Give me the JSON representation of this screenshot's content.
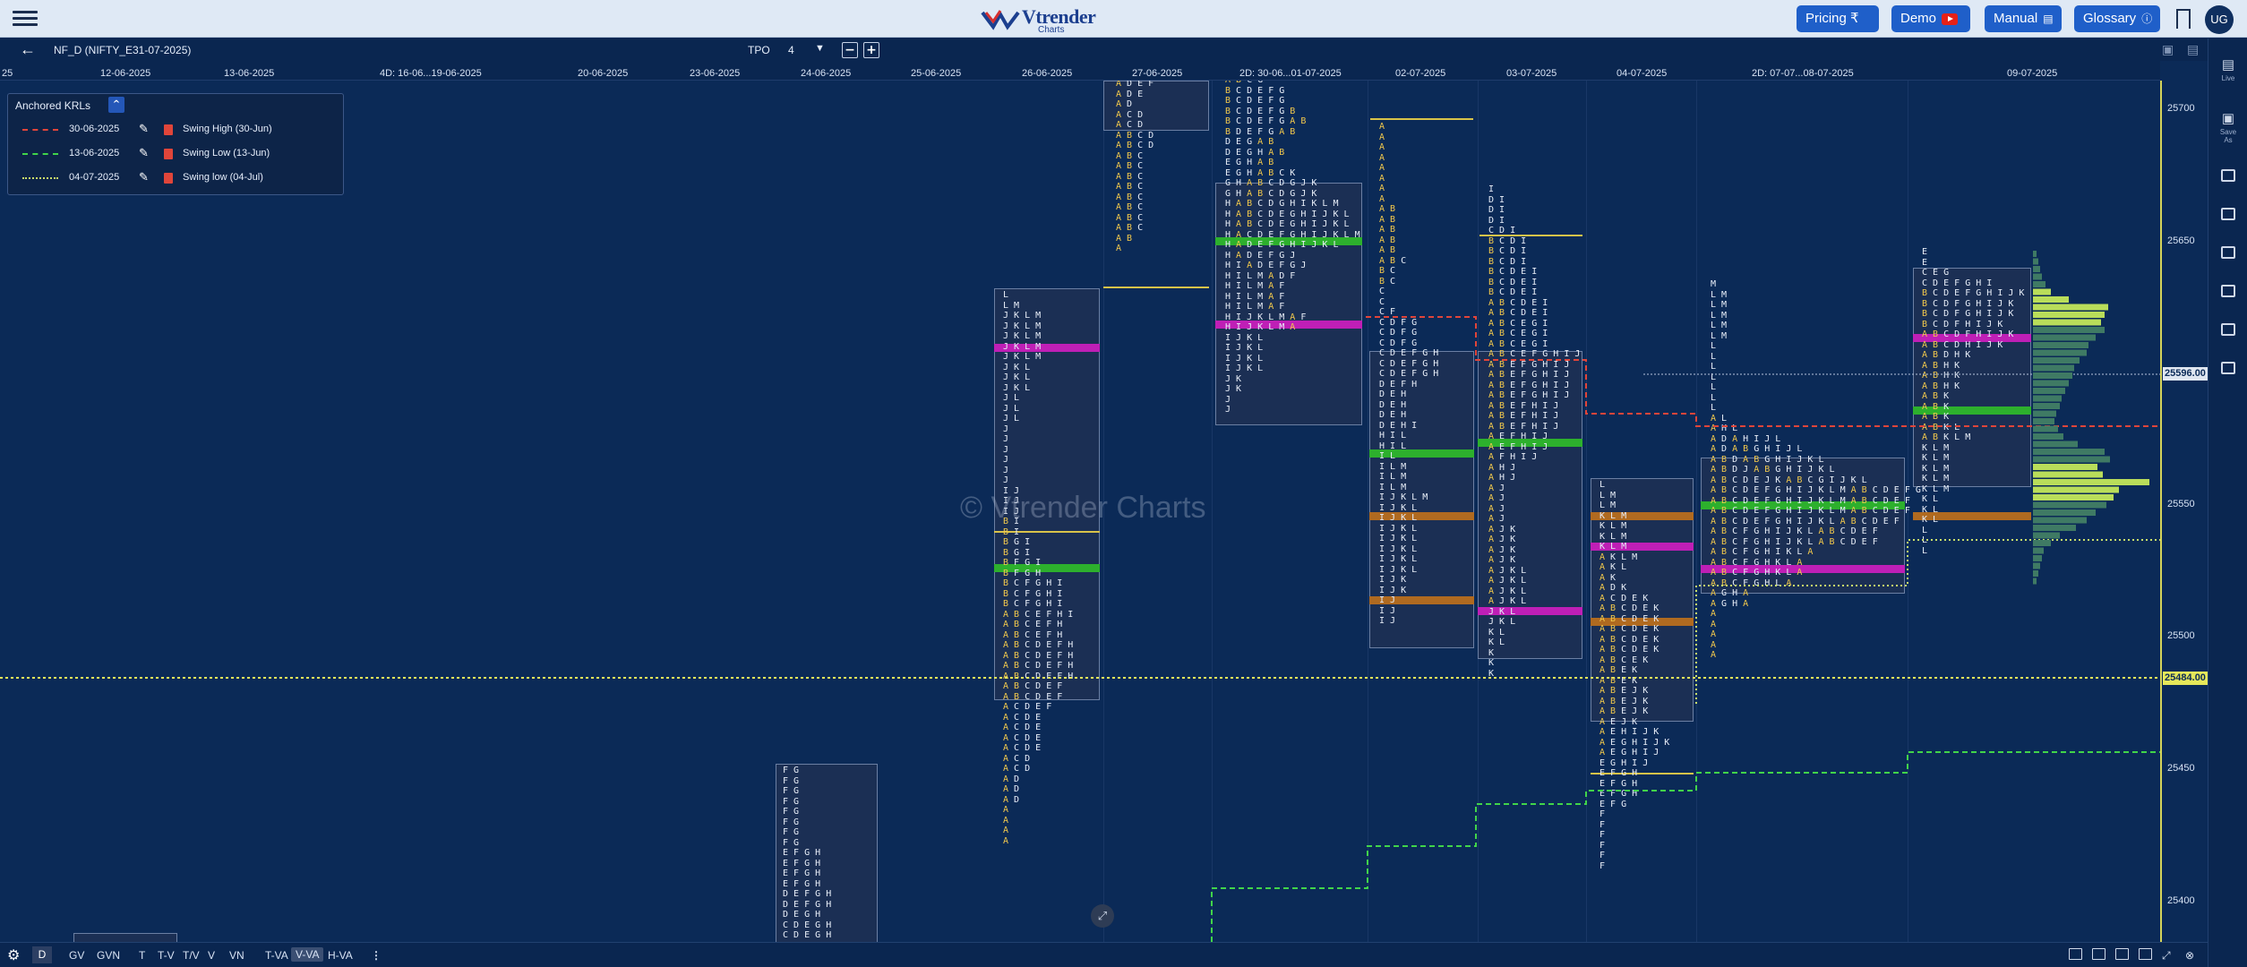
{
  "header": {
    "logo_name": "Vtrender",
    "logo_sub": "Charts",
    "nav": [
      {
        "label": "Pricing ₹",
        "icon": ""
      },
      {
        "label": "Demo",
        "icon": "youtube-icon"
      },
      {
        "label": "Manual",
        "icon": "book-icon"
      },
      {
        "label": "Glossary",
        "icon": "info-icon"
      }
    ],
    "avatar": "UG"
  },
  "toolbar": {
    "symbol": "NF_D (NIFTY_E31-07-2025)",
    "tpo_label": "TPO",
    "tpo_value": "4",
    "minus": "−",
    "plus": "+"
  },
  "dates": [
    "25",
    "12-06-2025",
    "13-06-2025",
    "4D: 16-06...19-06-2025",
    "20-06-2025",
    "23-06-2025",
    "24-06-2025",
    "25-06-2025",
    "26-06-2025",
    "27-06-2025",
    "2D: 30-06...01-07-2025",
    "02-07-2025",
    "03-07-2025",
    "04-07-2025",
    "2D: 07-07...08-07-2025",
    "09-07-2025"
  ],
  "price_ticks": [
    "25700",
    "25650",
    "25600",
    "25550",
    "25500",
    "25450",
    "25400"
  ],
  "price_tags": {
    "current": "25596.00",
    "line": "25484.00"
  },
  "watermark": "© Vtrender Charts",
  "legend": {
    "title": "Anchored KRLs",
    "collapse": "^",
    "rows": [
      {
        "date": "30-06-2025",
        "name": "Swing High (30-Jun)",
        "color": "#e0453a",
        "style": "dashed"
      },
      {
        "date": "13-06-2025",
        "name": "Swing Low (13-Jun)",
        "color": "#41d44a",
        "style": "dashed"
      },
      {
        "date": "04-07-2025",
        "name": "Swing low (04-Jul)",
        "color": "#c9e06b",
        "style": "dotted"
      }
    ]
  },
  "rail": {
    "live": "Live",
    "save": "Save As"
  },
  "bottom": {
    "d": "D",
    "items": [
      "GV",
      "GVN",
      "T",
      "T-V",
      "T/V",
      "V",
      "VN",
      "T-VA",
      "V-VA",
      "H-VA"
    ],
    "active": "V-VA"
  },
  "tpo_letters": {
    "p1": [
      "F G",
      "F G",
      "F G",
      "F G",
      "F G",
      "F G",
      "F G",
      "F G",
      "E F G H",
      "E F G H",
      "E F G H",
      "E F G H",
      "D E F G H",
      "D E F G H",
      "D E G H",
      "C D E G H",
      "C D E G H"
    ],
    "p2": [
      "L",
      "L M",
      "J K L M",
      "J K L M",
      "J K L M",
      "J K L M",
      "J K L M",
      "J K L",
      "J K L",
      "J K L",
      "J L",
      "J L",
      "J L",
      "J",
      "J",
      "J",
      "J",
      "J",
      "J",
      "I J",
      "I J",
      "I J",
      "B I",
      "B I",
      "B G I",
      "B G I",
      "B F G I",
      "B F G H",
      "B C F G H I",
      "B C F G H I",
      "B C F G H I",
      "A B C E F H I",
      "A B C E F H",
      "A B C E F H",
      "A B C D E F H",
      "A B C D E F H",
      "A B C D E F H",
      "A B C D E F H",
      "A B C D E F",
      "A B C D E F",
      "A C D E F",
      "A C D E",
      "A C D E",
      "A C D E",
      "A C D E",
      "A C D",
      "A C D",
      "A D",
      "A D",
      "A D",
      "A",
      "A",
      "A",
      "A"
    ],
    "p3": [
      "A D E F",
      "A D E",
      "A D",
      "A C D",
      "A C D",
      "A B C D",
      "A B C D",
      "A B C",
      "A B C",
      "A B C",
      "A B C",
      "A B C",
      "A B C",
      "A B C",
      "A B C",
      "A B",
      "A"
    ],
    "p4": [
      "A B C G",
      "B C D E F G",
      "B C D E F G",
      "B C D E F G B",
      "B C D E F G A B",
      "B D E F G A B",
      "D E G A B",
      "D E G H A B",
      "E G H A B",
      "E G H A B C K",
      "G H A B C D G J K",
      "G H A B C D G J K",
      "H A B C D G H I K L M",
      "H A B C D E G H I J K L",
      "H A B C D E G H I J K L",
      "H A C D E F G H I J K L M",
      "H A D E F G H I J K L",
      "H A D E F G J",
      "H I A D E F G J",
      "H I L M A D F",
      "H I L M A F",
      "H I L M A F",
      "H I L M A F",
      "H I J K L M A F",
      "H I J K L M A",
      "I J K L",
      "I J K L",
      "I J K L",
      "I J K L",
      "J K",
      "J K",
      "J",
      "J"
    ],
    "p5": [
      "A",
      "A",
      "A",
      "A",
      "A",
      "A",
      "A",
      "A",
      "A B",
      "A B",
      "A B",
      "A B",
      "A B",
      "A B C",
      "B C",
      "B C",
      "C",
      "C",
      "C F",
      "C D F G",
      "C D F G",
      "C D F G",
      "C D E F G H",
      "C D E F G H",
      "C D E F G H",
      "D E F H",
      "D E H",
      "D E H",
      "D E H",
      "D E H I",
      "H I L",
      "H I L",
      "I L",
      "I L M",
      "I L M",
      "I L M",
      "I J K L M",
      "I J K L",
      "I J K L",
      "I J K L",
      "I J K L",
      "I J K L",
      "I J K L",
      "I J K L",
      "I J K",
      "I J K",
      "I J",
      "I J",
      "I J"
    ],
    "p6": [
      "I",
      "D I",
      "D I",
      "D I",
      "C D I",
      "B C D I",
      "B C D I",
      "B C D I",
      "B C D E I",
      "B C D E I",
      "B C D E I",
      "A B C D E I",
      "A B C D E I",
      "A B C E G I",
      "A B C E G I",
      "A B C E G I",
      "A B C E F G H I J",
      "A B E F G H I J",
      "A B E F G H I J",
      "A B E F G H I J",
      "A B E F G H I J",
      "A B E F H I J",
      "A B E F H I J",
      "A B E F H I J",
      "A E F H I J",
      "A E F H I J",
      "A F H I J",
      "A H J",
      "A H J",
      "A J",
      "A J",
      "A J",
      "A J",
      "A J K",
      "A J K",
      "A J K",
      "A J K",
      "A J K L",
      "A J K L",
      "A J K L",
      "A J K L",
      "J K L",
      "J K L",
      "K L",
      "K L",
      "K",
      "K",
      "K"
    ],
    "p7": [
      "L",
      "L M",
      "L M",
      "K L M",
      "K L M",
      "K L M",
      "K L M",
      "A K L M",
      "A K L",
      "A K",
      "A D K",
      "A C D E K",
      "A B C D E K",
      "A B C D E K",
      "A B C D E K",
      "A B C D E K",
      "A B C D E K",
      "A B C E K",
      "A B E K",
      "A B E K",
      "A B E J K",
      "A B E J K",
      "A B E J K",
      "A E J K",
      "A E H I J K",
      "A E G H I J K",
      "A E G H I J",
      "E G H I J",
      "E F G H",
      "E F G H",
      "E F G H",
      "E F G",
      "F",
      "F",
      "F",
      "F",
      "F",
      "F"
    ],
    "p8": [
      "M",
      "L M",
      "L M",
      "L M",
      "L M",
      "L M",
      "L",
      "L",
      "L",
      "L",
      "L",
      "L",
      "L",
      "A L",
      "A H L",
      "A D A H I J L",
      "A D A B G H I J L",
      "A B D A B G H I J K L",
      "A B D J A B G H I J K L",
      "A B C D E J K A B C G I J K L",
      "A B C D E F G H I J K L M A B C D E F G",
      "A B C D E F G H I J K L M A B C D E F",
      "A B C D E F G H I J K L M A B C D E F",
      "A B C D E F G H I J K L A B C D E F",
      "A B C F G H I J K L A B C D E F",
      "A B C F G H I J K L A B C D E F",
      "A B C F G H I K L A",
      "A B C F G H K L A",
      "A B C F G H K L A",
      "A B C F G H L A",
      "A G H A",
      "A G H A",
      "A",
      "A",
      "A",
      "A",
      "A"
    ],
    "p9": [
      "E",
      "E",
      "C E G",
      "C D E F G H I",
      "B C D E F G H I J K",
      "B C D F G H I J K",
      "B C D F G H I J K",
      "B C D F H I J K",
      "A B C D F H I J K",
      "A B C D H I J K",
      "A B D H K",
      "A B H K",
      "A B H K",
      "A B H K",
      "A B K",
      "A B K",
      "A B K",
      "A B K L",
      "A B K L M",
      "K L M",
      "K L M",
      "K L M",
      "K L M",
      "K L M",
      "K L",
      "K L",
      "K L",
      "L",
      "L",
      "L"
    ]
  }
}
